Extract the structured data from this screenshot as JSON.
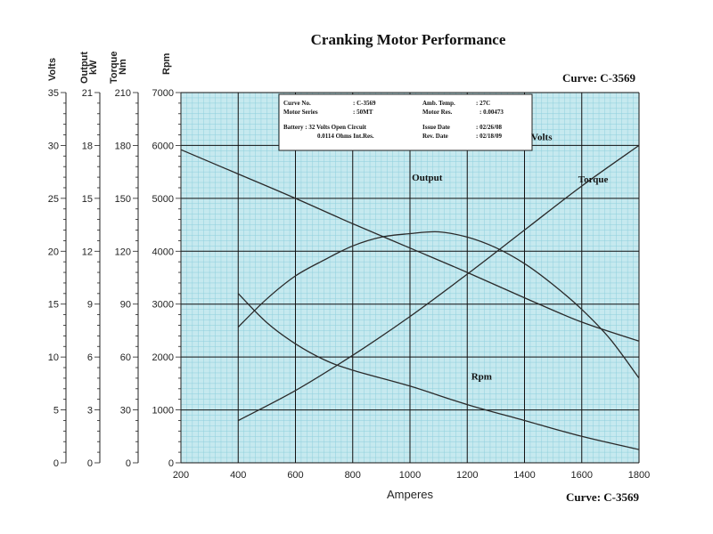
{
  "header": {
    "title": "Cranking Motor Performance",
    "curve_top": "Curve: C-3569",
    "curve_bottom": "Curve: C-3569"
  },
  "axes_heads": {
    "volts": "Volts",
    "output_line1": "Output",
    "output_line2": "kW",
    "torque_line1": "Torque",
    "torque_line2": "Nm",
    "rpm": "Rpm"
  },
  "info_box": {
    "curve_no_label": "Curve No.",
    "curve_no_value": ": C-3569",
    "amb_temp_label": "Amb. Temp.",
    "amb_temp_value": ": 27C",
    "motor_series_label": "Motor Series",
    "motor_series_value": ": 50MT",
    "motor_res_label": "Motor Res.",
    "motor_res_value": ": 0.00473",
    "battery_line1": "Battery : 32 Volts Open Circuit",
    "battery_line2": "0.0114 Ohms Int.Res.",
    "issue_date_label": "Issue Date",
    "issue_date_value": ": 02/26/08",
    "rev_date_label": "Rev. Date",
    "rev_date_value": ": 02/18/09"
  },
  "colors": {
    "plot_bg": "#c6e9ef",
    "minor_grid": "#8ecfdc",
    "major_grid": "#111111",
    "curve": "#2a2a2a"
  },
  "chart_data": {
    "type": "line",
    "title": "Cranking Motor Performance",
    "xlabel": "Amperes",
    "xlim": [
      200,
      1800
    ],
    "x_ticks": [
      "200",
      "400",
      "600",
      "800",
      "1000",
      "1200",
      "1400",
      "1600",
      "1800"
    ],
    "y_axes": [
      {
        "name": "Volts",
        "unit": "",
        "lim": [
          0,
          35
        ],
        "ticks": [
          "0",
          "5",
          "10",
          "15",
          "20",
          "25",
          "30",
          "35"
        ]
      },
      {
        "name": "Output",
        "unit": "kW",
        "lim": [
          0,
          21
        ],
        "ticks": [
          "0",
          "3",
          "6",
          "9",
          "12",
          "15",
          "18",
          "21"
        ]
      },
      {
        "name": "Torque",
        "unit": "Nm",
        "lim": [
          0,
          210
        ],
        "ticks": [
          "0",
          "30",
          "60",
          "90",
          "120",
          "150",
          "180",
          "210"
        ]
      },
      {
        "name": "Rpm",
        "unit": "",
        "lim": [
          0,
          7000
        ],
        "ticks": [
          "0",
          "1000",
          "2000",
          "3000",
          "4000",
          "5000",
          "6000",
          "7000"
        ]
      }
    ],
    "grid": true,
    "series": [
      {
        "name": "Volts",
        "axis": "Volts",
        "label_x": 1460,
        "label_y": 30.5,
        "x": [
          200,
          400,
          600,
          800,
          1000,
          1200,
          1400,
          1600,
          1800
        ],
        "y": [
          29.6,
          27.3,
          25.0,
          22.6,
          20.3,
          18.0,
          15.6,
          13.3,
          11.5
        ]
      },
      {
        "name": "Output",
        "axis": "Output",
        "label_x": 1060,
        "label_y": 16.0,
        "x": [
          400,
          500,
          600,
          700,
          800,
          900,
          1000,
          1100,
          1200,
          1300,
          1400,
          1500,
          1600,
          1700,
          1800
        ],
        "y": [
          7.7,
          9.3,
          10.6,
          11.5,
          12.3,
          12.8,
          13.0,
          13.1,
          12.8,
          12.2,
          11.3,
          10.1,
          8.7,
          7.0,
          4.8
        ]
      },
      {
        "name": "Torque",
        "axis": "Torque",
        "label_x": 1640,
        "label_y": 159,
        "x": [
          400,
          600,
          800,
          1000,
          1200,
          1400,
          1600,
          1800
        ],
        "y": [
          24,
          41,
          61,
          83,
          107,
          132,
          157,
          180
        ]
      },
      {
        "name": "Rpm",
        "axis": "Rpm",
        "label_x": 1250,
        "label_y": 1570,
        "x": [
          400,
          500,
          600,
          700,
          800,
          1000,
          1200,
          1400,
          1600,
          1800
        ],
        "y": [
          3200,
          2650,
          2250,
          1950,
          1750,
          1450,
          1100,
          800,
          500,
          250
        ]
      }
    ]
  }
}
